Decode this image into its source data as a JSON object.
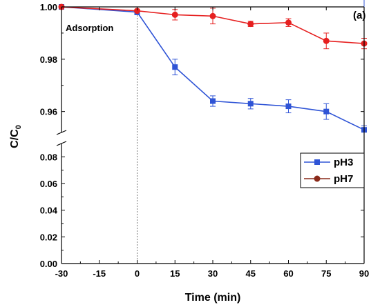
{
  "chart_data": {
    "type": "line",
    "panel_label": "(a)",
    "annotation": "Adsorption",
    "xlabel": "Time (min)",
    "ylabel_main": "C/C",
    "ylabel_sub": "0",
    "x": [
      -30,
      0,
      15,
      30,
      45,
      60,
      75,
      90
    ],
    "xlim": [
      -30,
      90
    ],
    "x_ticks": [
      "-30",
      "-15",
      "0",
      "15",
      "30",
      "45",
      "60",
      "75",
      "90"
    ],
    "x_tick_values": [
      -30,
      -15,
      0,
      15,
      30,
      45,
      60,
      75,
      90
    ],
    "y_axis_break": true,
    "y_lower_range": [
      0,
      0.09
    ],
    "y_upper_range": [
      0.952,
      1.0
    ],
    "y_ticks_lower": [
      "0.00",
      "0.02",
      "0.04",
      "0.06",
      "0.08"
    ],
    "y_tick_values_lower": [
      0,
      0.02,
      0.04,
      0.06,
      0.08
    ],
    "y_ticks_upper": [
      "0.96",
      "0.98",
      "1.00"
    ],
    "y_tick_values_upper": [
      0.96,
      0.98,
      1.0
    ],
    "vertical_marker_x": 0,
    "legend_position": "right-middle",
    "series": [
      {
        "name": "pH3",
        "color": "#2f54d6",
        "marker": "square",
        "values": [
          1.0,
          0.998,
          0.977,
          0.964,
          0.963,
          0.962,
          0.96,
          0.953
        ],
        "errors": [
          0.0,
          0.001,
          0.003,
          0.002,
          0.002,
          0.0025,
          0.003,
          0.0015
        ]
      },
      {
        "name": "pH7",
        "color": "#e62020",
        "marker": "circle",
        "legend_color": "#8a2a1a",
        "values": [
          1.0,
          0.9985,
          0.997,
          0.9965,
          0.9935,
          0.994,
          0.987,
          0.986
        ],
        "errors": [
          0.0,
          0.0005,
          0.002,
          0.003,
          0.001,
          0.0015,
          0.003,
          0.002
        ]
      }
    ]
  }
}
